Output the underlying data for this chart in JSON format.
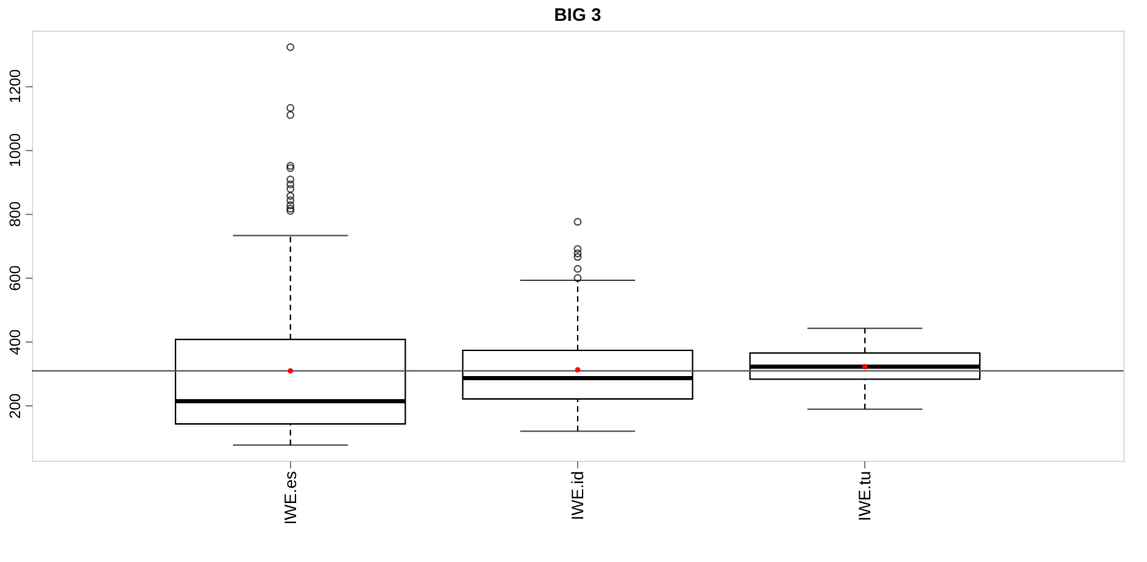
{
  "chart_data": {
    "type": "box",
    "title": "BIG 3",
    "categories": [
      "IWE.es",
      "IWE.id",
      "IWE.tu"
    ],
    "color": "#000000",
    "boxes": [
      {
        "low": 76,
        "q1": 142,
        "median": 213,
        "q3": 406,
        "high": 731,
        "mean": 308,
        "outliers": [
          1320,
          1130,
          1108,
          949,
          942,
          906,
          891,
          877,
          855,
          841,
          826,
          815,
          808
        ]
      },
      {
        "low": 119,
        "q1": 220,
        "median": 285,
        "q3": 372,
        "high": 591,
        "mean": 311,
        "outliers": [
          774,
          689,
          675,
          664,
          627,
          598
        ]
      },
      {
        "low": 188,
        "q1": 282,
        "median": 321,
        "q3": 364,
        "high": 441,
        "mean": 321
      }
    ],
    "ylim": [
      27,
      1372
    ],
    "yticks": [
      200,
      400,
      600,
      800,
      1000,
      1200
    ],
    "grid": false,
    "ref_lines": [
      {
        "axis": "y",
        "value": 308,
        "color": "#555555"
      }
    ]
  }
}
